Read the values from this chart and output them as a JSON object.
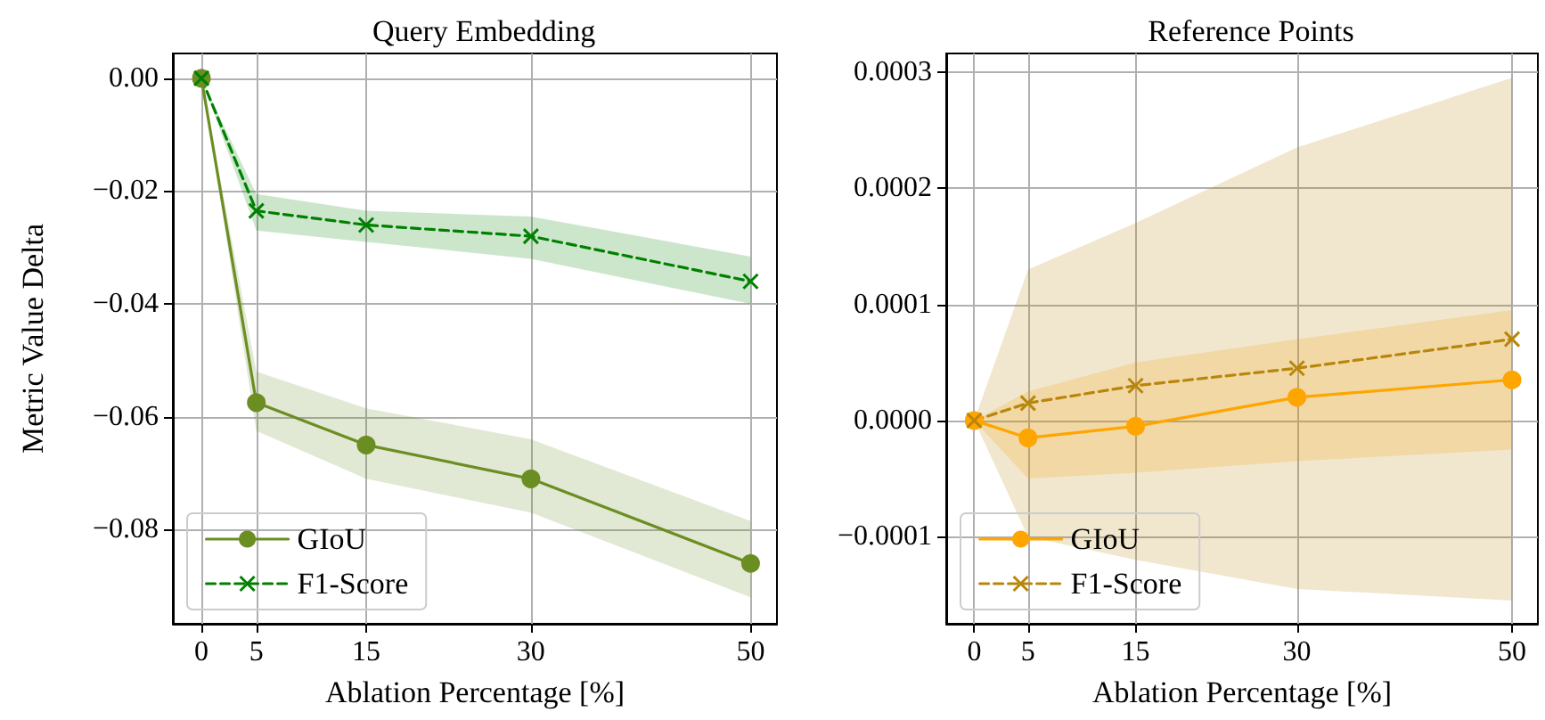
{
  "chart_data": [
    {
      "type": "line",
      "title": "Query Embedding",
      "xlabel": "Ablation Percentage [%]",
      "ylabel": "Metric Value Delta",
      "x": [
        0,
        5,
        15,
        30,
        50
      ],
      "series": [
        {
          "name": "GIoU",
          "color": "#6b8e23",
          "marker": "circle",
          "line_style": "solid",
          "values": [
            0,
            -0.0575,
            -0.065,
            -0.071,
            -0.086
          ],
          "lower": [
            0,
            -0.0625,
            -0.071,
            -0.077,
            -0.092
          ],
          "upper": [
            0,
            -0.052,
            -0.0585,
            -0.064,
            -0.0785
          ]
        },
        {
          "name": "F1-Score",
          "color": "#008000",
          "marker": "cross",
          "line_style": "dashed",
          "values": [
            0,
            -0.0235,
            -0.026,
            -0.028,
            -0.036
          ],
          "lower": [
            0,
            -0.027,
            -0.029,
            -0.032,
            -0.04
          ],
          "upper": [
            0,
            -0.0205,
            -0.0235,
            -0.0245,
            -0.0316
          ]
        }
      ],
      "xlim": [
        -2.6,
        52.4
      ],
      "xticks": [
        0,
        5,
        15,
        30,
        50
      ],
      "ylim": [
        -0.0967,
        0.0044
      ],
      "yticks": [
        {
          "value": -0.08,
          "label": "−0.08"
        },
        {
          "value": -0.06,
          "label": "−0.06"
        },
        {
          "value": -0.04,
          "label": "−0.04"
        },
        {
          "value": -0.02,
          "label": "−0.02"
        },
        {
          "value": 0,
          "label": "0.00"
        }
      ],
      "grid": true,
      "legend": "bottom left"
    },
    {
      "type": "line",
      "title": "Reference Points",
      "xlabel": "Ablation Percentage [%]",
      "x": [
        0,
        5,
        15,
        30,
        50
      ],
      "series": [
        {
          "name": "GIoU",
          "color": "#ffa500",
          "marker": "circle",
          "line_style": "solid",
          "values": [
            0,
            -1.5e-05,
            -5e-06,
            2e-05,
            3.5e-05
          ],
          "lower": [
            0,
            -5e-05,
            -4.5e-05,
            -3.5e-05,
            -2.5e-05
          ],
          "upper": [
            0,
            2.5e-05,
            5e-05,
            7e-05,
            9.5e-05
          ]
        },
        {
          "name": "F1-Score",
          "color": "#b8860b",
          "marker": "cross",
          "line_style": "dashed",
          "values": [
            0,
            1.5e-05,
            3e-05,
            4.5e-05,
            7e-05
          ],
          "lower": [
            0,
            -0.0001,
            -0.00012,
            -0.000145,
            -0.000155
          ],
          "upper": [
            0,
            0.00013,
            0.00017,
            0.000235,
            0.000295
          ]
        }
      ],
      "xlim": [
        -2.6,
        52.4
      ],
      "xticks": [
        0,
        5,
        15,
        30,
        50
      ],
      "ylim": [
        -0.000175,
        0.000316
      ],
      "yticks": [
        {
          "value": -0.0001,
          "label": "−0.0001"
        },
        {
          "value": 0,
          "label": "0.0000"
        },
        {
          "value": 0.0001,
          "label": "0.0001"
        },
        {
          "value": 0.0002,
          "label": "0.0002"
        },
        {
          "value": 0.0003,
          "label": "0.0003"
        }
      ],
      "grid": true,
      "legend": "bottom left"
    }
  ]
}
